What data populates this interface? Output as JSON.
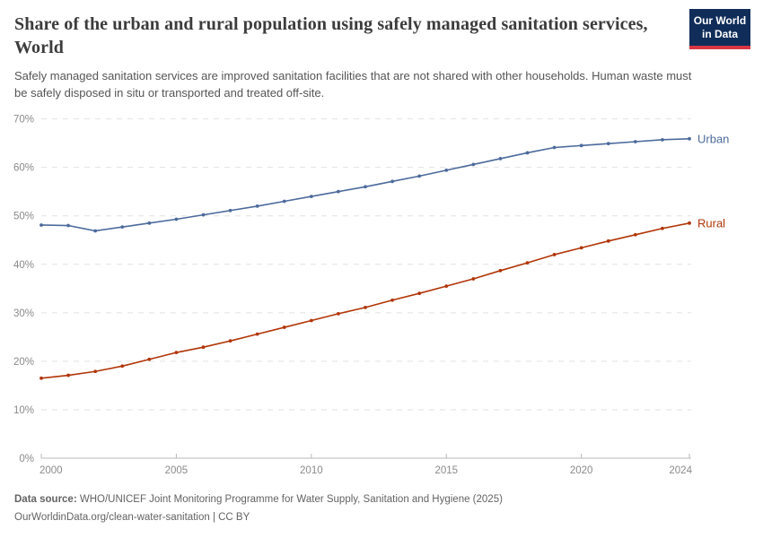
{
  "header": {
    "title": "Share of the urban and rural population using safely managed sanitation services, World",
    "subtitle": "Safely managed sanitation services are improved sanitation facilities that are not shared with other households. Human waste must be safely disposed in situ or transported and treated off-site.",
    "logo": {
      "line1": "Our World",
      "line2": "in Data",
      "bg_color": "#102d59",
      "accent_color": "#d93644"
    }
  },
  "footer": {
    "source_label": "Data source:",
    "source_text": " WHO/UNICEF Joint Monitoring Programme for Water Supply, Sanitation and Hygiene (2025)",
    "note": "OurWorldinData.org/clean-water-sanitation | CC BY"
  },
  "chart_data": {
    "type": "line",
    "title": "Share of the urban and rural population using safely managed sanitation services, World",
    "x": [
      2000,
      2001,
      2002,
      2003,
      2004,
      2005,
      2006,
      2007,
      2008,
      2009,
      2010,
      2011,
      2012,
      2013,
      2014,
      2015,
      2016,
      2017,
      2018,
      2019,
      2020,
      2021,
      2022,
      2023,
      2024
    ],
    "series": [
      {
        "name": "Urban",
        "color": "#4c6a9c",
        "values": [
          48.1,
          48.0,
          46.9,
          47.7,
          48.5,
          49.3,
          50.2,
          51.1,
          52.0,
          53.0,
          54.0,
          55.0,
          56.0,
          57.1,
          58.2,
          59.4,
          60.6,
          61.8,
          63.0,
          64.1,
          64.5,
          64.9,
          65.3,
          65.7,
          65.9
        ]
      },
      {
        "name": "Rural",
        "color": "#b13507",
        "values": [
          16.5,
          17.1,
          17.9,
          19.0,
          20.4,
          21.8,
          22.9,
          24.2,
          25.6,
          27.0,
          28.4,
          29.8,
          31.1,
          32.6,
          34.0,
          35.5,
          37.0,
          38.7,
          40.3,
          42.0,
          43.4,
          44.8,
          46.1,
          47.4,
          48.5
        ]
      }
    ],
    "ylim": [
      0,
      70
    ],
    "yticks": [
      0,
      10,
      20,
      30,
      40,
      50,
      60,
      70
    ],
    "ytick_suffix": "%",
    "xticks": [
      2000,
      2005,
      2010,
      2015,
      2020,
      2024
    ],
    "grid": "horizontal-dashed",
    "legend_position": "line-end-labels",
    "grid_color": "#e2e2e2",
    "axis_color": "#b8b8b8",
    "tick_label_color": "#8a8a8a"
  }
}
